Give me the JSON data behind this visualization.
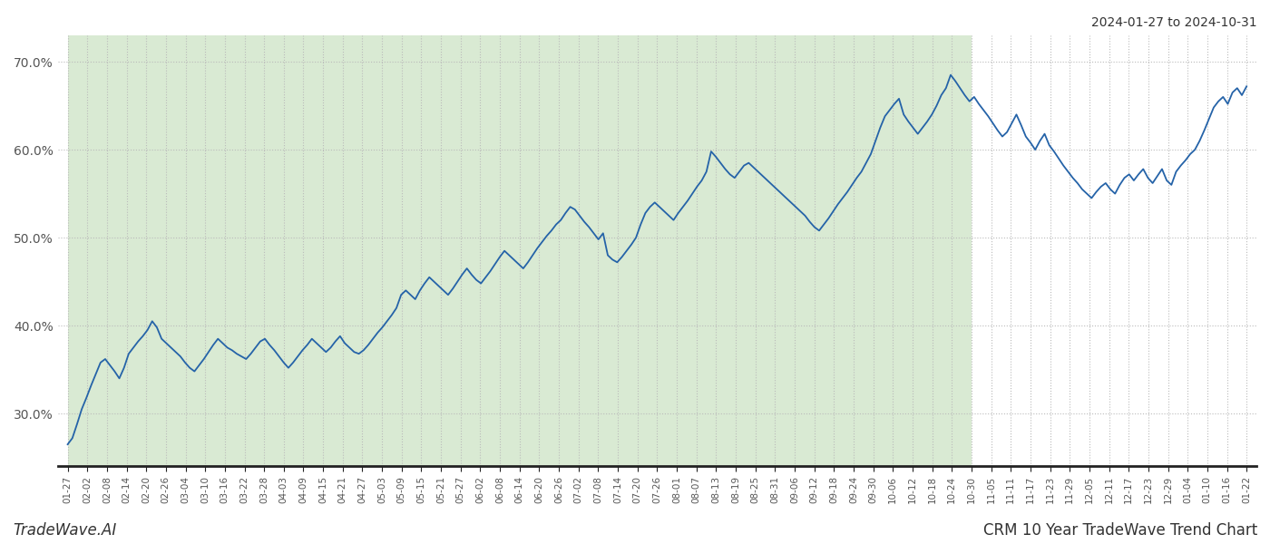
{
  "title_top_right": "2024-01-27 to 2024-10-31",
  "title_bottom_left": "TradeWave.AI",
  "title_bottom_right": "CRM 10 Year TradeWave Trend Chart",
  "ylim": [
    24.0,
    73.0
  ],
  "yticks": [
    30.0,
    40.0,
    50.0,
    60.0,
    70.0
  ],
  "background_color": "#ffffff",
  "shaded_region_color": "#d9ead3",
  "line_color": "#2563a8",
  "line_width": 1.3,
  "grid_color": "#bbbbbb",
  "x_labels": [
    "01-27",
    "02-02",
    "02-08",
    "02-14",
    "02-20",
    "02-26",
    "03-04",
    "03-10",
    "03-16",
    "03-22",
    "03-28",
    "04-03",
    "04-09",
    "04-15",
    "04-21",
    "04-27",
    "05-03",
    "05-09",
    "05-15",
    "05-21",
    "05-27",
    "06-02",
    "06-08",
    "06-14",
    "06-20",
    "06-26",
    "07-02",
    "07-08",
    "07-14",
    "07-20",
    "07-26",
    "08-01",
    "08-07",
    "08-13",
    "08-19",
    "08-25",
    "08-31",
    "09-06",
    "09-12",
    "09-18",
    "09-24",
    "09-30",
    "10-06",
    "10-12",
    "10-18",
    "10-24",
    "10-30",
    "11-05",
    "11-11",
    "11-17",
    "11-23",
    "11-29",
    "12-05",
    "12-11",
    "12-17",
    "12-23",
    "12-29",
    "01-04",
    "01-10",
    "01-16",
    "01-22"
  ],
  "shaded_end_label": "10-30",
  "y_data": [
    26.5,
    27.2,
    28.8,
    30.5,
    31.8,
    33.2,
    34.5,
    35.8,
    36.2,
    35.5,
    34.8,
    34.0,
    35.2,
    36.8,
    37.5,
    38.2,
    38.8,
    39.5,
    40.5,
    39.8,
    38.5,
    38.0,
    37.5,
    37.0,
    36.5,
    35.8,
    35.2,
    34.8,
    35.5,
    36.2,
    37.0,
    37.8,
    38.5,
    38.0,
    37.5,
    37.2,
    36.8,
    36.5,
    36.2,
    36.8,
    37.5,
    38.2,
    38.5,
    37.8,
    37.2,
    36.5,
    35.8,
    35.2,
    35.8,
    36.5,
    37.2,
    37.8,
    38.5,
    38.0,
    37.5,
    37.0,
    37.5,
    38.2,
    38.8,
    38.0,
    37.5,
    37.0,
    36.8,
    37.2,
    37.8,
    38.5,
    39.2,
    39.8,
    40.5,
    41.2,
    42.0,
    43.5,
    44.0,
    43.5,
    43.0,
    44.0,
    44.8,
    45.5,
    45.0,
    44.5,
    44.0,
    43.5,
    44.2,
    45.0,
    45.8,
    46.5,
    45.8,
    45.2,
    44.8,
    45.5,
    46.2,
    47.0,
    47.8,
    48.5,
    48.0,
    47.5,
    47.0,
    46.5,
    47.2,
    48.0,
    48.8,
    49.5,
    50.2,
    50.8,
    51.5,
    52.0,
    52.8,
    53.5,
    53.2,
    52.5,
    51.8,
    51.2,
    50.5,
    49.8,
    50.5,
    48.0,
    47.5,
    47.2,
    47.8,
    48.5,
    49.2,
    50.0,
    51.5,
    52.8,
    53.5,
    54.0,
    53.5,
    53.0,
    52.5,
    52.0,
    52.8,
    53.5,
    54.2,
    55.0,
    55.8,
    56.5,
    57.5,
    59.8,
    59.2,
    58.5,
    57.8,
    57.2,
    56.8,
    57.5,
    58.2,
    58.5,
    58.0,
    57.5,
    57.0,
    56.5,
    56.0,
    55.5,
    55.0,
    54.5,
    54.0,
    53.5,
    53.0,
    52.5,
    51.8,
    51.2,
    50.8,
    51.5,
    52.2,
    53.0,
    53.8,
    54.5,
    55.2,
    56.0,
    56.8,
    57.5,
    58.5,
    59.5,
    61.0,
    62.5,
    63.8,
    64.5,
    65.2,
    65.8,
    64.0,
    63.2,
    62.5,
    61.8,
    62.5,
    63.2,
    64.0,
    65.0,
    66.2,
    67.0,
    68.5,
    67.8,
    67.0,
    66.2,
    65.5,
    66.0,
    65.2,
    64.5,
    63.8,
    63.0,
    62.2,
    61.5,
    62.0,
    63.0,
    64.0,
    62.8,
    61.5,
    60.8,
    60.0,
    61.0,
    61.8,
    60.5,
    59.8,
    59.0,
    58.2,
    57.5,
    56.8,
    56.2,
    55.5,
    55.0,
    54.5,
    55.2,
    55.8,
    56.2,
    55.5,
    55.0,
    56.0,
    56.8,
    57.2,
    56.5,
    57.2,
    57.8,
    56.8,
    56.2,
    57.0,
    57.8,
    56.5,
    56.0,
    57.5,
    58.2,
    58.8,
    59.5,
    60.0,
    61.0,
    62.2,
    63.5,
    64.8,
    65.5,
    66.0,
    65.2,
    66.5,
    67.0,
    66.2,
    67.2
  ]
}
